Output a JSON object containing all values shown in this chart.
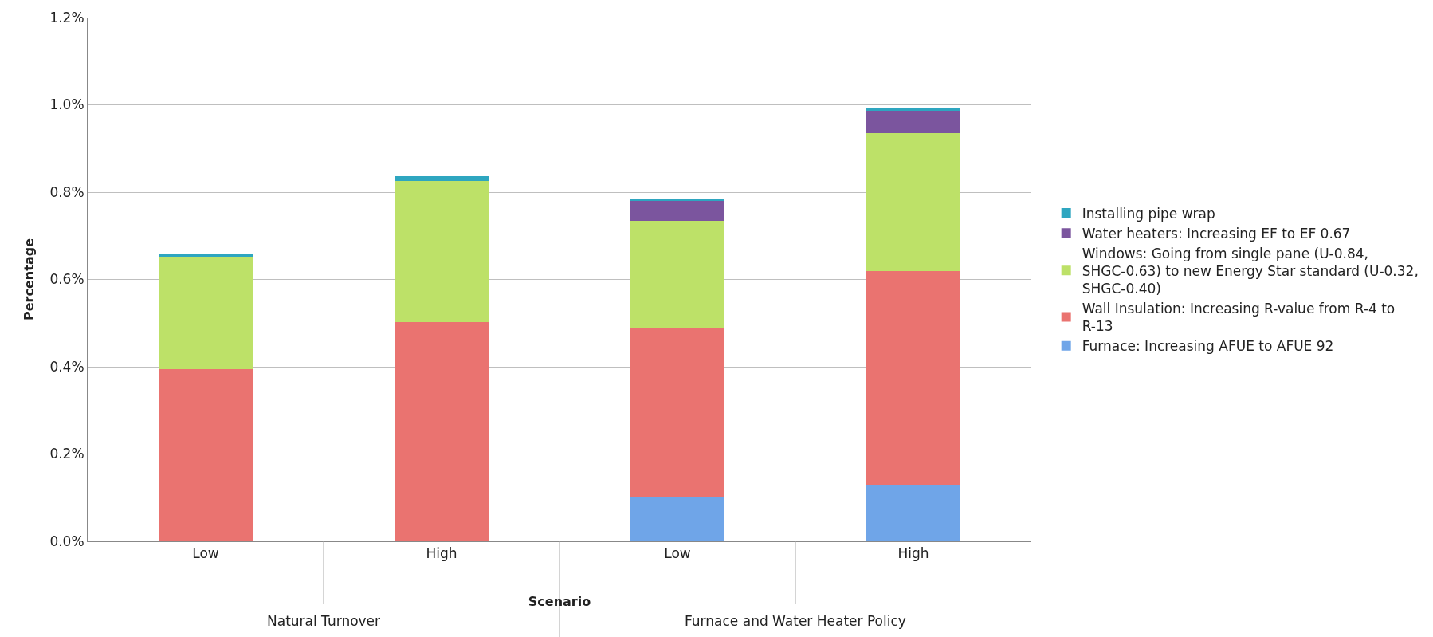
{
  "chart_data": {
    "type": "bar",
    "stacked": true,
    "xlabel": "Scenario",
    "ylabel": "Percentage",
    "categories": [
      "Low",
      "High",
      "Low",
      "High"
    ],
    "series": [
      {
        "name": "Furnace: Increasing AFUE to AFUE 92",
        "color": "#6fa5e8",
        "values": [
          0,
          0,
          0.1,
          0.13
        ]
      },
      {
        "name": "Wall Insulation: Increasing R-value from R-4 to R-13",
        "color": "#ea7370",
        "values": [
          0.395,
          0.503,
          0.389,
          0.49
        ]
      },
      {
        "name": "Windows: Going from single pane (U-0.84, SHGC-0.63) to new Energy Star standard (U-0.32, SHGC-0.40)",
        "color": "#bde168",
        "values": [
          0.257,
          0.323,
          0.245,
          0.316
        ]
      },
      {
        "name": "Water heaters: Increasing EF to EF 0.67",
        "color": "#7b559e",
        "values": [
          0,
          0,
          0.046,
          0.051
        ]
      },
      {
        "name": "Installing pipe wrap",
        "color": "#2ea6c0",
        "values": [
          0.006,
          0.01,
          0.004,
          0.005
        ]
      }
    ],
    "annotations": [
      "Natural Turnover",
      "Furnace and Water Heater Policy"
    ],
    "ylim": [
      0,
      1.2
    ],
    "yticks": [
      {
        "value": 0,
        "label": "0.0%"
      },
      {
        "value": 0.2,
        "label": "0.2%"
      },
      {
        "value": 0.4,
        "label": "0.4%"
      },
      {
        "value": 0.6,
        "label": "0.6%"
      },
      {
        "value": 0.8,
        "label": "0.8%"
      },
      {
        "value": 1.0,
        "label": "1.0%"
      },
      {
        "value": 1.2,
        "label": "1.2%"
      }
    ],
    "grid": "y",
    "legend": "right"
  }
}
